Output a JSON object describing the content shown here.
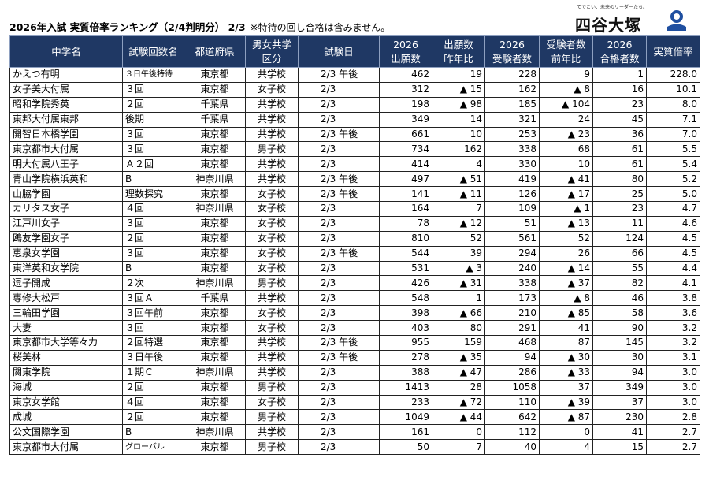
{
  "title": {
    "main": "2026年入試  実質倍率ランキング（2/4判明分）  2/3",
    "note": "※特待の回し合格は含みません。"
  },
  "logo": {
    "tagline": "てでこい、未来のリーダーたち。",
    "name": "四谷大塚",
    "color": "#1f4fa0"
  },
  "colors": {
    "header_bg": "#1f3864"
  },
  "columns": [
    "中学名",
    "試験回数名",
    "都道府県",
    "男女共学区分",
    "試験日",
    "2026出願数",
    "出願数昨年比",
    "2026受験者数",
    "受験者数前年比",
    "2026合格者数",
    "実質倍率"
  ],
  "columns_lines": [
    [
      "中学名"
    ],
    [
      "試験回数名"
    ],
    [
      "都道府県"
    ],
    [
      "男女共学",
      "区分"
    ],
    [
      "試験日"
    ],
    [
      "2026",
      "出願数"
    ],
    [
      "出願数",
      "昨年比"
    ],
    [
      "2026",
      "受験者数"
    ],
    [
      "受験者数",
      "前年比"
    ],
    [
      "2026",
      "合格者数"
    ],
    [
      "実質倍率"
    ]
  ],
  "rows": [
    [
      "かえつ有明",
      "３日午後特待",
      "東京都",
      "共学校",
      "2/3 午後",
      "462",
      "19",
      "228",
      "9",
      "1",
      "228.0"
    ],
    [
      "女子美大付属",
      "３回",
      "東京都",
      "女子校",
      "2/3",
      "312",
      "▲ 15",
      "162",
      "▲ 8",
      "16",
      "10.1"
    ],
    [
      "昭和学院秀英",
      "２回",
      "千葉県",
      "共学校",
      "2/3",
      "198",
      "▲ 98",
      "185",
      "▲ 104",
      "23",
      "8.0"
    ],
    [
      "東邦大付属東邦",
      "後期",
      "千葉県",
      "共学校",
      "2/3",
      "349",
      "14",
      "321",
      "24",
      "45",
      "7.1"
    ],
    [
      "開智日本橋学園",
      "３回",
      "東京都",
      "共学校",
      "2/3 午後",
      "661",
      "10",
      "253",
      "▲ 23",
      "36",
      "7.0"
    ],
    [
      "東京都市大付属",
      "３回",
      "東京都",
      "男子校",
      "2/3",
      "734",
      "162",
      "338",
      "68",
      "61",
      "5.5"
    ],
    [
      "明大付属八王子",
      "Ａ２回",
      "東京都",
      "共学校",
      "2/3",
      "414",
      "4",
      "330",
      "10",
      "61",
      "5.4"
    ],
    [
      "青山学院横浜英和",
      "B",
      "神奈川県",
      "共学校",
      "2/3 午後",
      "497",
      "▲ 51",
      "419",
      "▲ 41",
      "80",
      "5.2"
    ],
    [
      "山脇学園",
      "理数探究",
      "東京都",
      "女子校",
      "2/3 午後",
      "141",
      "▲ 11",
      "126",
      "▲ 17",
      "25",
      "5.0"
    ],
    [
      "カリタス女子",
      "４回",
      "神奈川県",
      "女子校",
      "2/3",
      "164",
      "7",
      "109",
      "▲ 1",
      "23",
      "4.7"
    ],
    [
      "江戸川女子",
      "３回",
      "東京都",
      "女子校",
      "2/3",
      "78",
      "▲ 12",
      "51",
      "▲ 13",
      "11",
      "4.6"
    ],
    [
      "鴎友学園女子",
      "２回",
      "東京都",
      "女子校",
      "2/3",
      "810",
      "52",
      "561",
      "52",
      "124",
      "4.5"
    ],
    [
      "恵泉女学園",
      "３回",
      "東京都",
      "女子校",
      "2/3 午後",
      "544",
      "39",
      "294",
      "26",
      "66",
      "4.5"
    ],
    [
      "東洋英和女学院",
      "B",
      "東京都",
      "女子校",
      "2/3",
      "531",
      "▲ 3",
      "240",
      "▲ 14",
      "55",
      "4.4"
    ],
    [
      "逗子開成",
      "２次",
      "神奈川県",
      "男子校",
      "2/3",
      "426",
      "▲ 31",
      "338",
      "▲ 37",
      "82",
      "4.1"
    ],
    [
      "専修大松戸",
      "３回Ａ",
      "千葉県",
      "共学校",
      "2/3",
      "548",
      "1",
      "173",
      "▲ 8",
      "46",
      "3.8"
    ],
    [
      "三輪田学園",
      "３回午前",
      "東京都",
      "女子校",
      "2/3",
      "398",
      "▲ 66",
      "210",
      "▲ 85",
      "58",
      "3.6"
    ],
    [
      "大妻",
      "３回",
      "東京都",
      "女子校",
      "2/3",
      "403",
      "80",
      "291",
      "41",
      "90",
      "3.2"
    ],
    [
      "東京都市大学等々力",
      "２回特選",
      "東京都",
      "共学校",
      "2/3 午後",
      "955",
      "159",
      "468",
      "87",
      "145",
      "3.2"
    ],
    [
      "桜美林",
      "３日午後",
      "東京都",
      "共学校",
      "2/3 午後",
      "278",
      "▲ 35",
      "94",
      "▲ 30",
      "30",
      "3.1"
    ],
    [
      "関東学院",
      "１期Ｃ",
      "神奈川県",
      "共学校",
      "2/3",
      "388",
      "▲ 47",
      "286",
      "▲ 33",
      "94",
      "3.0"
    ],
    [
      "海城",
      "２回",
      "東京都",
      "男子校",
      "2/3",
      "1413",
      "28",
      "1058",
      "37",
      "349",
      "3.0"
    ],
    [
      "東京女学館",
      "４回",
      "東京都",
      "女子校",
      "2/3",
      "233",
      "▲ 72",
      "110",
      "▲ 39",
      "37",
      "3.0"
    ],
    [
      "成城",
      "２回",
      "東京都",
      "男子校",
      "2/3",
      "1049",
      "▲ 44",
      "642",
      "▲ 87",
      "230",
      "2.8"
    ],
    [
      "公文国際学園",
      "B",
      "神奈川県",
      "共学校",
      "2/3",
      "161",
      "0",
      "112",
      "0",
      "41",
      "2.7"
    ],
    [
      "東京都市大付属",
      "グローバル",
      "東京都",
      "男子校",
      "2/3",
      "50",
      "7",
      "40",
      "4",
      "15",
      "2.7"
    ]
  ]
}
